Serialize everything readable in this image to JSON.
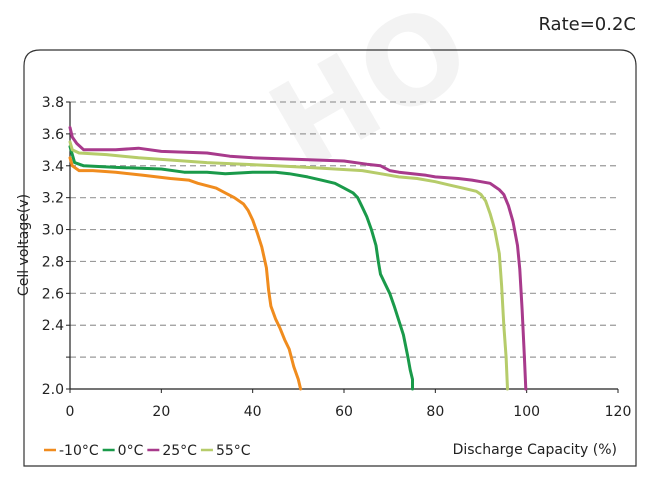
{
  "watermark": "HO",
  "header": {
    "rate_label": "Rate=0.2C"
  },
  "chart_data": {
    "type": "line",
    "title": "",
    "xlabel": "Discharge Capacity (%)",
    "ylabel": "Cell voltage(v)",
    "xlim": [
      0,
      120
    ],
    "ylim": [
      2.0,
      3.8
    ],
    "xticks": [
      0,
      20,
      40,
      60,
      80,
      100,
      120
    ],
    "yticks": [
      2.0,
      2.2,
      2.4,
      2.6,
      2.8,
      3.0,
      3.2,
      3.4,
      3.6,
      3.8
    ],
    "ytick_labels": [
      "2.0",
      "",
      "2.4",
      "2.6",
      "2.8",
      "3.0",
      "3.2",
      "3.4",
      "3.6",
      "3.8"
    ],
    "grid": "horizontal dashed",
    "legend_position": "bottom-left",
    "series": [
      {
        "name": "-10°C",
        "color": "#f08c1e",
        "points": [
          [
            0,
            3.45
          ],
          [
            0.5,
            3.4
          ],
          [
            2,
            3.37
          ],
          [
            5,
            3.37
          ],
          [
            10,
            3.36
          ],
          [
            16,
            3.34
          ],
          [
            22,
            3.32
          ],
          [
            26,
            3.31
          ],
          [
            28,
            3.29
          ],
          [
            32,
            3.26
          ],
          [
            34,
            3.23
          ],
          [
            36,
            3.2
          ],
          [
            38,
            3.16
          ],
          [
            39,
            3.12
          ],
          [
            40,
            3.06
          ],
          [
            41,
            2.98
          ],
          [
            42,
            2.89
          ],
          [
            43,
            2.76
          ],
          [
            43.5,
            2.62
          ],
          [
            44,
            2.52
          ],
          [
            45,
            2.44
          ],
          [
            46,
            2.38
          ],
          [
            47,
            2.31
          ],
          [
            48,
            2.25
          ],
          [
            49,
            2.14
          ],
          [
            50,
            2.06
          ],
          [
            50.5,
            2.0
          ]
        ]
      },
      {
        "name": "0°C",
        "color": "#1a9a4a",
        "points": [
          [
            0,
            3.52
          ],
          [
            1,
            3.42
          ],
          [
            3,
            3.4
          ],
          [
            10,
            3.39
          ],
          [
            20,
            3.38
          ],
          [
            25,
            3.36
          ],
          [
            30,
            3.36
          ],
          [
            34,
            3.35
          ],
          [
            40,
            3.36
          ],
          [
            45,
            3.36
          ],
          [
            48,
            3.35
          ],
          [
            52,
            3.33
          ],
          [
            55,
            3.31
          ],
          [
            58,
            3.29
          ],
          [
            60,
            3.26
          ],
          [
            62,
            3.23
          ],
          [
            63,
            3.2
          ],
          [
            64,
            3.14
          ],
          [
            65,
            3.08
          ],
          [
            66,
            3.0
          ],
          [
            67,
            2.9
          ],
          [
            67.5,
            2.8
          ],
          [
            68,
            2.72
          ],
          [
            69,
            2.66
          ],
          [
            70,
            2.6
          ],
          [
            71,
            2.52
          ],
          [
            72,
            2.43
          ],
          [
            73,
            2.34
          ],
          [
            74,
            2.2
          ],
          [
            74.5,
            2.12
          ],
          [
            75,
            2.06
          ],
          [
            75,
            2.0
          ]
        ]
      },
      {
        "name": "25°C",
        "color": "#a83a8c",
        "points": [
          [
            0,
            3.64
          ],
          [
            0.5,
            3.58
          ],
          [
            1.5,
            3.54
          ],
          [
            3,
            3.5
          ],
          [
            10,
            3.5
          ],
          [
            15,
            3.51
          ],
          [
            20,
            3.49
          ],
          [
            30,
            3.48
          ],
          [
            35,
            3.46
          ],
          [
            40,
            3.45
          ],
          [
            50,
            3.44
          ],
          [
            60,
            3.43
          ],
          [
            65,
            3.41
          ],
          [
            68,
            3.4
          ],
          [
            70,
            3.37
          ],
          [
            72,
            3.36
          ],
          [
            75,
            3.35
          ],
          [
            78,
            3.34
          ],
          [
            80,
            3.33
          ],
          [
            85,
            3.32
          ],
          [
            88,
            3.31
          ],
          [
            90,
            3.3
          ],
          [
            92,
            3.29
          ],
          [
            93,
            3.27
          ],
          [
            94,
            3.25
          ],
          [
            95,
            3.22
          ],
          [
            96,
            3.15
          ],
          [
            97,
            3.05
          ],
          [
            98,
            2.9
          ],
          [
            98.5,
            2.75
          ],
          [
            99,
            2.5
          ],
          [
            99.5,
            2.2
          ],
          [
            99.8,
            2.0
          ]
        ]
      },
      {
        "name": "55°C",
        "color": "#b6cc6a",
        "points": [
          [
            0,
            3.55
          ],
          [
            0.5,
            3.5
          ],
          [
            2,
            3.48
          ],
          [
            8,
            3.47
          ],
          [
            15,
            3.45
          ],
          [
            20,
            3.44
          ],
          [
            30,
            3.42
          ],
          [
            38,
            3.41
          ],
          [
            45,
            3.4
          ],
          [
            52,
            3.39
          ],
          [
            58,
            3.38
          ],
          [
            64,
            3.37
          ],
          [
            68,
            3.35
          ],
          [
            72,
            3.33
          ],
          [
            76,
            3.32
          ],
          [
            80,
            3.3
          ],
          [
            83,
            3.28
          ],
          [
            86,
            3.26
          ],
          [
            89,
            3.24
          ],
          [
            90,
            3.22
          ],
          [
            91,
            3.18
          ],
          [
            92,
            3.1
          ],
          [
            93,
            3.0
          ],
          [
            94,
            2.85
          ],
          [
            94.5,
            2.65
          ],
          [
            95,
            2.4
          ],
          [
            95.5,
            2.2
          ],
          [
            95.8,
            2.0
          ]
        ]
      }
    ]
  }
}
